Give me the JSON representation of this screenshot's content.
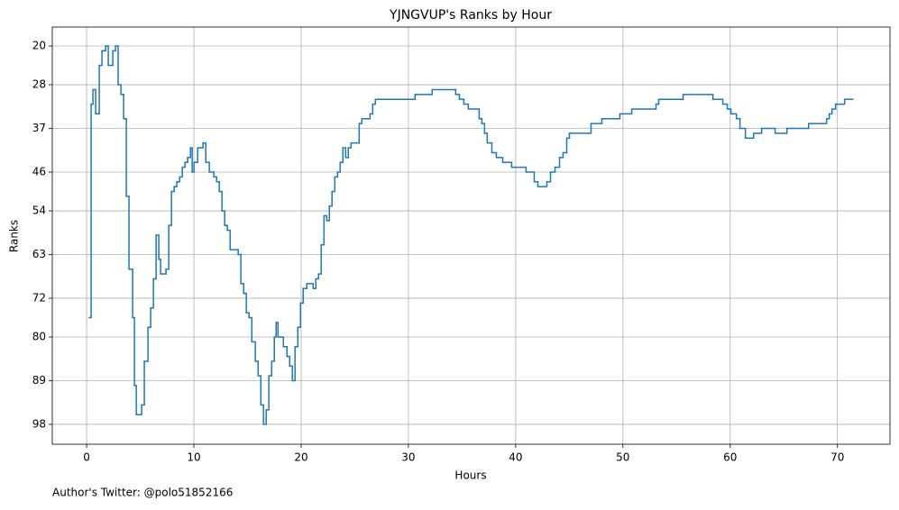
{
  "chart_data": {
    "type": "line",
    "step": "post",
    "title": "YJNGVUP's Ranks by Hour",
    "x_label": "Hours",
    "y_label": "Ranks",
    "footnote": "Author's Twitter: @polo51852166",
    "grid": true,
    "y_inverted": true,
    "xlim": [
      -3.2,
      74.9
    ],
    "ylim": [
      102.1,
      16.1
    ],
    "xticks": [
      0,
      10,
      20,
      30,
      40,
      50,
      60,
      70
    ],
    "yticks": [
      20,
      28,
      37,
      46,
      54,
      63,
      72,
      80,
      89,
      98
    ],
    "x": [
      0.25,
      0.42,
      0.59,
      0.84,
      1.18,
      1.43,
      1.77,
      2.02,
      2.44,
      2.69,
      2.94,
      3.2,
      3.45,
      3.7,
      3.95,
      4.29,
      4.46,
      4.63,
      5.13,
      5.38,
      5.72,
      5.97,
      6.23,
      6.48,
      6.73,
      6.9,
      7.4,
      7.66,
      7.91,
      8.16,
      8.41,
      8.67,
      8.92,
      9.17,
      9.42,
      9.68,
      9.84,
      10.01,
      10.35,
      10.85,
      11.11,
      11.44,
      11.86,
      12.12,
      12.37,
      12.62,
      12.87,
      13.12,
      13.38,
      14.13,
      14.38,
      14.64,
      14.89,
      15.14,
      15.4,
      15.73,
      15.99,
      16.24,
      16.49,
      16.74,
      16.99,
      17.25,
      17.5,
      17.67,
      17.84,
      18.34,
      18.68,
      18.93,
      19.18,
      19.43,
      19.69,
      19.94,
      20.19,
      20.53,
      21.12,
      21.37,
      21.62,
      21.87,
      22.13,
      22.38,
      22.63,
      22.88,
      23.14,
      23.39,
      23.64,
      23.89,
      24.15,
      24.4,
      24.65,
      25.41,
      25.66,
      26.42,
      26.67,
      26.92,
      30.62,
      32.22,
      34.41,
      34.75,
      35.17,
      35.59,
      36.6,
      36.85,
      37.1,
      37.35,
      37.78,
      38.2,
      38.79,
      39.63,
      40.97,
      41.73,
      42.07,
      42.91,
      43.25,
      43.67,
      44.09,
      44.42,
      44.76,
      45.01,
      47.03,
      48.04,
      49.72,
      50.82,
      53.09,
      53.34,
      55.61,
      58.39,
      59.31,
      59.73,
      60.07,
      60.58,
      60.91,
      61.42,
      62.18,
      62.93,
      64.19,
      65.29,
      67.31,
      68.99,
      69.24,
      69.49,
      69.83,
      70.67,
      71.43
    ],
    "series": [
      {
        "color": "#1f77b4",
        "values": [
          76,
          32,
          29,
          34,
          24,
          21,
          20,
          24,
          21,
          20,
          28,
          30,
          35,
          51,
          66,
          76,
          90,
          96,
          94,
          85,
          78,
          74,
          68,
          59,
          64,
          67,
          66,
          57,
          50,
          49,
          48,
          47,
          45,
          44,
          43,
          41,
          46,
          44,
          41,
          40,
          44,
          46,
          47,
          48,
          50,
          54,
          57,
          58,
          62,
          63,
          69,
          71,
          75,
          76,
          81,
          85,
          88,
          94,
          98,
          95,
          88,
          85,
          80,
          77,
          80,
          82,
          84,
          86,
          89,
          82,
          78,
          73,
          70,
          69,
          70,
          68,
          67,
          61,
          55,
          56,
          53,
          50,
          47,
          46,
          44,
          41,
          43,
          41,
          40,
          36,
          35,
          34,
          32,
          31,
          30,
          29,
          30,
          31,
          32,
          33,
          35,
          36,
          38,
          40,
          42,
          43,
          44,
          45,
          46,
          48,
          49,
          48,
          46,
          45,
          43,
          42,
          39,
          38,
          36,
          35,
          34,
          33,
          32,
          31,
          30,
          31,
          32,
          33,
          34,
          35,
          37,
          39,
          38,
          37,
          38,
          37,
          36,
          35,
          34,
          33,
          32,
          31,
          31
        ]
      }
    ]
  }
}
